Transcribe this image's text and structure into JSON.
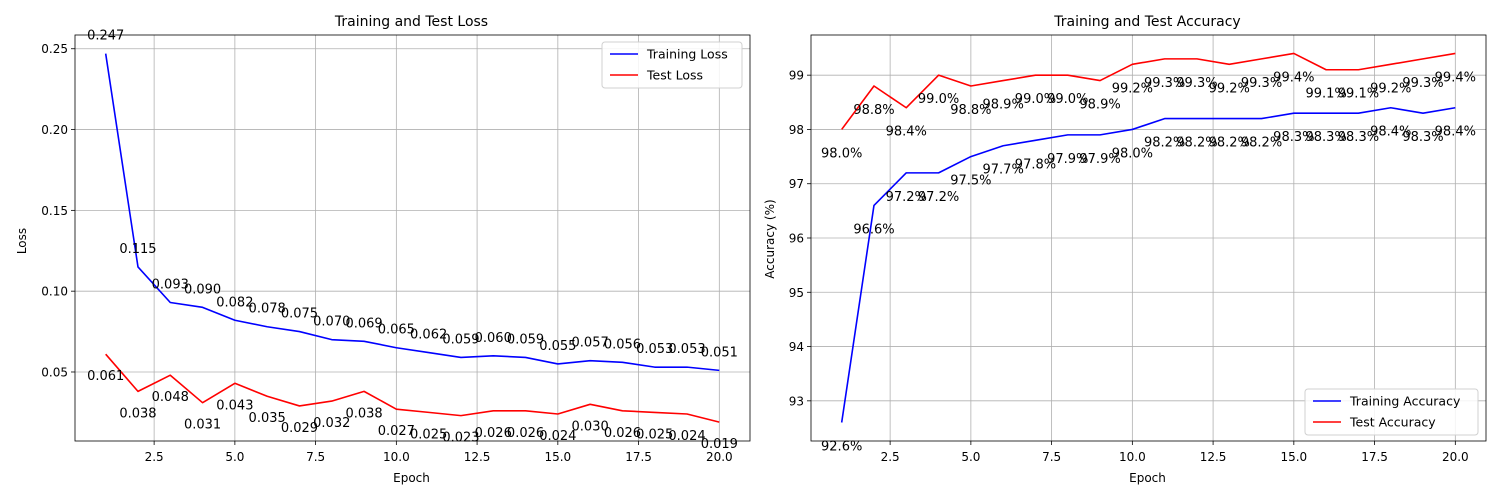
{
  "chart_data": [
    {
      "type": "line",
      "title": "Training and Test Loss",
      "xlabel": "Epoch",
      "ylabel": "Loss",
      "x": [
        1,
        2,
        3,
        4,
        5,
        6,
        7,
        8,
        9,
        10,
        11,
        12,
        13,
        14,
        15,
        16,
        17,
        18,
        19,
        20
      ],
      "xlim": [
        0.05,
        20.95
      ],
      "ylim": [
        0.0073,
        0.2585
      ],
      "xticks": [
        2.5,
        5.0,
        7.5,
        10.0,
        12.5,
        15.0,
        17.5,
        20.0
      ],
      "xtick_labels": [
        "2.5",
        "5.0",
        "7.5",
        "10.0",
        "12.5",
        "15.0",
        "17.5",
        "20.0"
      ],
      "yticks": [
        0.05,
        0.1,
        0.15,
        0.2,
        0.25
      ],
      "ytick_labels": [
        "0.05",
        "0.10",
        "0.15",
        "0.20",
        "0.25"
      ],
      "grid": true,
      "legend_position": "upper right",
      "series": [
        {
          "name": "Training Loss",
          "color": "#0000ff",
          "values": [
            0.247,
            0.115,
            0.093,
            0.09,
            0.082,
            0.078,
            0.075,
            0.07,
            0.069,
            0.065,
            0.062,
            0.059,
            0.06,
            0.059,
            0.055,
            0.057,
            0.056,
            0.053,
            0.053,
            0.051
          ],
          "labels": [
            "0.247",
            "0.115",
            "0.093",
            "0.090",
            "0.082",
            "0.078",
            "0.075",
            "0.070",
            "0.069",
            "0.065",
            "0.062",
            "0.059",
            "0.060",
            "0.059",
            "0.055",
            "0.057",
            "0.056",
            "0.053",
            "0.053",
            "0.051"
          ]
        },
        {
          "name": "Test Loss",
          "color": "#ff0000",
          "values": [
            0.061,
            0.038,
            0.048,
            0.031,
            0.043,
            0.035,
            0.029,
            0.032,
            0.038,
            0.027,
            0.025,
            0.023,
            0.026,
            0.026,
            0.024,
            0.03,
            0.026,
            0.025,
            0.024,
            0.019
          ],
          "labels": [
            "0.061",
            "0.038",
            "0.048",
            "0.031",
            "0.043",
            "0.035",
            "0.029",
            "0.032",
            "0.038",
            "0.027",
            "0.025",
            "0.023",
            "0.026",
            "0.026",
            "0.024",
            "0.030",
            "0.026",
            "0.025",
            "0.024",
            "0.019"
          ]
        }
      ]
    },
    {
      "type": "line",
      "title": "Training and Test Accuracy",
      "xlabel": "Epoch",
      "ylabel": "Accuracy (%)",
      "x": [
        1,
        2,
        3,
        4,
        5,
        6,
        7,
        8,
        9,
        10,
        11,
        12,
        13,
        14,
        15,
        16,
        17,
        18,
        19,
        20
      ],
      "xlim": [
        0.05,
        20.95
      ],
      "ylim": [
        92.26,
        99.74
      ],
      "xticks": [
        2.5,
        5.0,
        7.5,
        10.0,
        12.5,
        15.0,
        17.5,
        20.0
      ],
      "xtick_labels": [
        "2.5",
        "5.0",
        "7.5",
        "10.0",
        "12.5",
        "15.0",
        "17.5",
        "20.0"
      ],
      "yticks": [
        93,
        94,
        95,
        96,
        97,
        98,
        99
      ],
      "ytick_labels": [
        "93",
        "94",
        "95",
        "96",
        "97",
        "98",
        "99"
      ],
      "grid": true,
      "legend_position": "lower right",
      "series": [
        {
          "name": "Training Accuracy",
          "color": "#0000ff",
          "values": [
            92.6,
            96.6,
            97.2,
            97.2,
            97.5,
            97.7,
            97.8,
            97.9,
            97.9,
            98.0,
            98.2,
            98.2,
            98.2,
            98.2,
            98.3,
            98.3,
            98.3,
            98.4,
            98.3,
            98.4
          ],
          "labels": [
            "92.6%",
            "96.6%",
            "97.2%",
            "97.2%",
            "97.5%",
            "97.7%",
            "97.8%",
            "97.9%",
            "97.9%",
            "98.0%",
            "98.2%",
            "98.2%",
            "98.2%",
            "98.2%",
            "98.3%",
            "98.3%",
            "98.3%",
            "98.4%",
            "98.3%",
            "98.4%"
          ]
        },
        {
          "name": "Test Accuracy",
          "color": "#ff0000",
          "values": [
            98.0,
            98.8,
            98.4,
            99.0,
            98.8,
            98.9,
            99.0,
            99.0,
            98.9,
            99.2,
            99.3,
            99.3,
            99.2,
            99.3,
            99.4,
            99.1,
            99.1,
            99.2,
            99.3,
            99.4
          ],
          "labels": [
            "98.0%",
            "98.8%",
            "98.4%",
            "99.0%",
            "98.8%",
            "98.9%",
            "99.0%",
            "99.0%",
            "98.9%",
            "99.2%",
            "99.3%",
            "99.3%",
            "99.2%",
            "99.3%",
            "99.4%",
            "99.1%",
            "99.1%",
            "99.2%",
            "99.3%",
            "99.4%"
          ]
        }
      ]
    }
  ]
}
